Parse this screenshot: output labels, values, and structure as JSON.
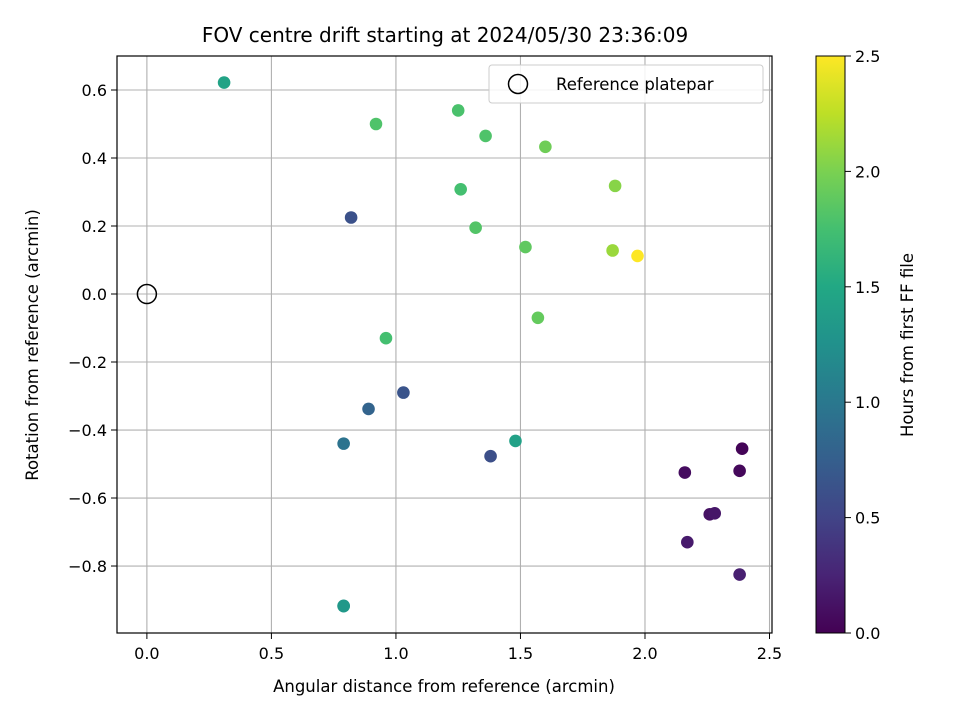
{
  "chart_data": {
    "type": "scatter",
    "title": "FOV centre drift starting at 2024/05/30 23:36:09",
    "xlabel": "Angular distance from reference (arcmin)",
    "ylabel": "Rotation from reference (arcmin)",
    "xlim": [
      -0.12,
      2.51
    ],
    "ylim": [
      -0.997,
      0.7
    ],
    "xticks": [
      0.0,
      0.5,
      1.0,
      1.5,
      2.0,
      2.5
    ],
    "xtick_labels": [
      "0.0",
      "0.5",
      "1.0",
      "1.5",
      "2.0",
      "2.5"
    ],
    "yticks": [
      -0.8,
      -0.6,
      -0.4,
      -0.2,
      0.0,
      0.2,
      0.4,
      0.6
    ],
    "ytick_labels": [
      "−0.8",
      "−0.6",
      "−0.4",
      "−0.2",
      "0.0",
      "0.2",
      "0.4",
      "0.6"
    ],
    "grid": true,
    "colormap": "viridis",
    "colorbar": {
      "label": "Hours from first FF file",
      "range": [
        0.0,
        2.5
      ],
      "ticks": [
        0.0,
        0.5,
        1.0,
        1.5,
        2.0,
        2.5
      ],
      "tick_labels": [
        "0.0",
        "0.5",
        "1.0",
        "1.5",
        "2.0",
        "2.5"
      ]
    },
    "legend": {
      "placement": "top-right",
      "entries": [
        {
          "label": "Reference platepar",
          "marker": "open-circle"
        }
      ]
    },
    "reference_point": {
      "x": 0.0,
      "y": 0.0
    },
    "points": [
      {
        "x": 2.39,
        "y": -0.455,
        "hours": 0.02
      },
      {
        "x": 2.38,
        "y": -0.52,
        "hours": 0.05
      },
      {
        "x": 2.16,
        "y": -0.525,
        "hours": 0.08
      },
      {
        "x": 2.26,
        "y": -0.648,
        "hours": 0.12
      },
      {
        "x": 2.28,
        "y": -0.645,
        "hours": 0.15
      },
      {
        "x": 2.17,
        "y": -0.73,
        "hours": 0.18
      },
      {
        "x": 2.38,
        "y": -0.825,
        "hours": 0.22
      },
      {
        "x": 1.38,
        "y": -0.477,
        "hours": 0.6
      },
      {
        "x": 1.03,
        "y": -0.29,
        "hours": 0.65
      },
      {
        "x": 0.82,
        "y": 0.225,
        "hours": 0.62
      },
      {
        "x": 0.89,
        "y": -0.338,
        "hours": 0.8
      },
      {
        "x": 0.79,
        "y": -0.44,
        "hours": 0.95
      },
      {
        "x": 0.79,
        "y": -0.917,
        "hours": 1.3
      },
      {
        "x": 0.79,
        "y": -0.918,
        "hours": 1.33
      },
      {
        "x": 1.48,
        "y": -0.432,
        "hours": 1.42
      },
      {
        "x": 0.31,
        "y": 0.622,
        "hours": 1.45
      },
      {
        "x": 0.96,
        "y": -0.13,
        "hours": 1.75
      },
      {
        "x": 1.26,
        "y": 0.308,
        "hours": 1.75
      },
      {
        "x": 1.25,
        "y": 0.54,
        "hours": 1.78
      },
      {
        "x": 0.92,
        "y": 0.5,
        "hours": 1.8
      },
      {
        "x": 1.36,
        "y": 0.465,
        "hours": 1.8
      },
      {
        "x": 1.32,
        "y": 0.195,
        "hours": 1.82
      },
      {
        "x": 1.52,
        "y": 0.138,
        "hours": 1.88
      },
      {
        "x": 1.57,
        "y": -0.07,
        "hours": 1.9
      },
      {
        "x": 1.6,
        "y": 0.433,
        "hours": 1.95
      },
      {
        "x": 1.88,
        "y": 0.318,
        "hours": 2.05
      },
      {
        "x": 1.87,
        "y": 0.128,
        "hours": 2.12
      },
      {
        "x": 1.97,
        "y": 0.112,
        "hours": 2.5
      }
    ]
  }
}
